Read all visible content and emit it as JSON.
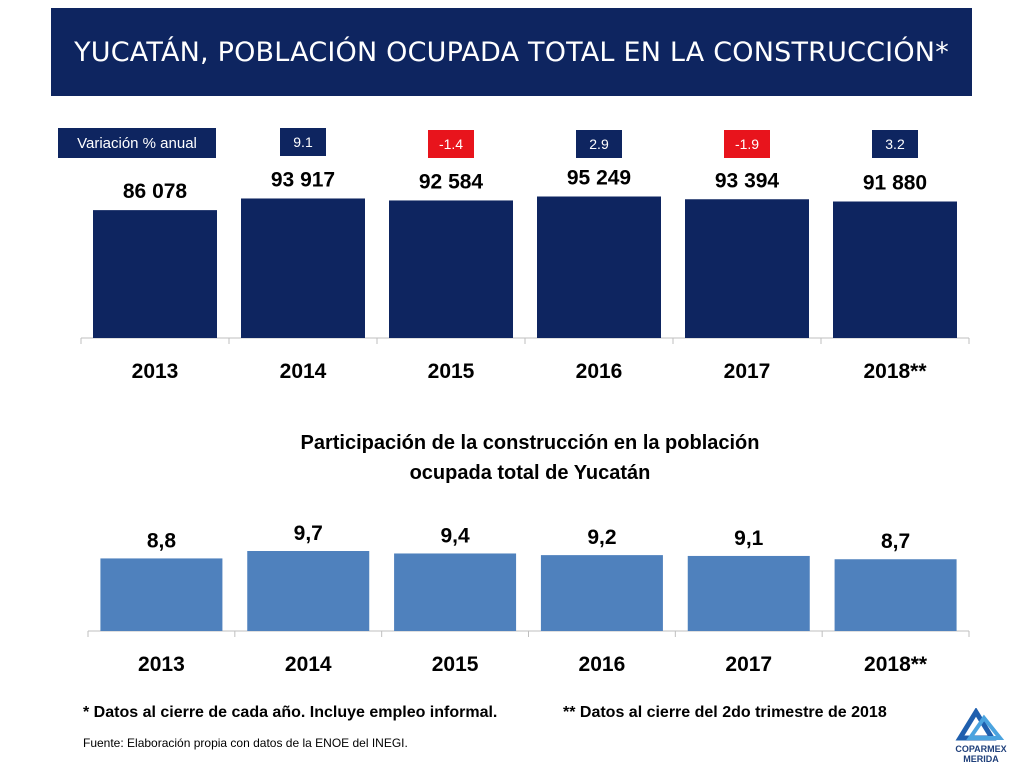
{
  "title": "YUCATÁN, POBLACIÓN OCUPADA TOTAL EN LA CONSTRUCCIÓN*",
  "variation_label": "Variación % anual",
  "variation": [
    {
      "value": "9.1",
      "color": "#0e2560"
    },
    {
      "value": "-1.4",
      "color": "#e8141c"
    },
    {
      "value": "2.9",
      "color": "#0e2560"
    },
    {
      "value": "-1.9",
      "color": "#e8141c"
    },
    {
      "value": "3.2",
      "color": "#0e2560"
    }
  ],
  "colors": {
    "dark_navy": "#0e2560",
    "steel_blue": "#4f81bd",
    "red": "#e8141c"
  },
  "chart_data": [
    {
      "type": "bar",
      "title": "",
      "categories": [
        "2013",
        "2014",
        "2015",
        "2016",
        "2017",
        "2018**"
      ],
      "values": [
        86078,
        93917,
        92584,
        95249,
        93394,
        91880
      ],
      "value_labels": [
        "86 078",
        "93 917",
        "92 584",
        "95 249",
        "93 394",
        "91 880"
      ],
      "xlabel": "",
      "ylabel": "",
      "color": "#0e2560"
    },
    {
      "type": "bar",
      "title": "Participación de la construcción en la población ocupada total de Yucatán",
      "title_lines": [
        "Participación de la construcción en la población",
        "ocupada total de Yucatán"
      ],
      "categories": [
        "2013",
        "2014",
        "2015",
        "2016",
        "2017",
        "2018**"
      ],
      "values": [
        8.8,
        9.7,
        9.4,
        9.2,
        9.1,
        8.7
      ],
      "value_labels": [
        "8,8",
        "9,7",
        "9,4",
        "9,2",
        "9,1",
        "8,7"
      ],
      "xlabel": "",
      "ylabel": "",
      "color": "#4f81bd"
    }
  ],
  "notes": {
    "note1": "* Datos al cierre de cada año. Incluye empleo informal.",
    "note2": "** Datos al cierre del 2do trimestre de 2018",
    "source": "Fuente: Elaboración propia con datos de la ENOE del INEGI."
  },
  "logo": {
    "icon": "coparmex-logo",
    "line1": "COPARMEX",
    "line2": "MERIDA"
  }
}
